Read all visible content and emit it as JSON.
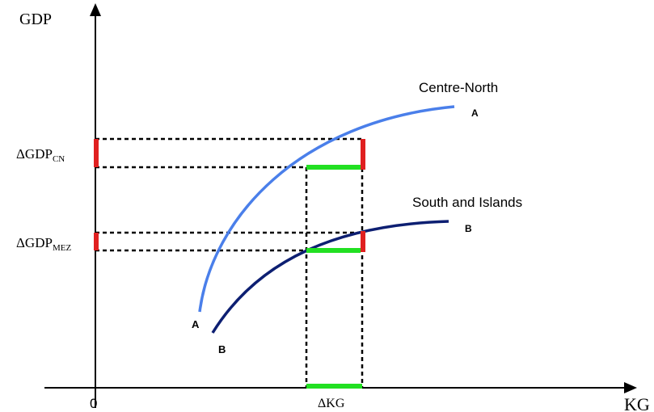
{
  "axes": {
    "y_label": "GDP",
    "x_label": "KG",
    "origin_label": "0"
  },
  "curves": {
    "centre_north": {
      "label": "Centre-North",
      "start_label": "A",
      "end_label": "A",
      "color": "#4a7fea"
    },
    "south_islands": {
      "label": "South and Islands",
      "start_label": "B",
      "end_label": "B",
      "color": "#0d1f72"
    }
  },
  "annotations": {
    "delta_gdp_cn": {
      "main": "ΔGDP",
      "sub": "CN"
    },
    "delta_gdp_mez": {
      "main": "ΔGDP",
      "sub": "MEZ"
    },
    "delta_kg": "ΔKG"
  },
  "colors": {
    "axis": "#000000",
    "highlight_red": "#e02020",
    "highlight_green": "#22e022",
    "guide_dashed": "#000000"
  }
}
